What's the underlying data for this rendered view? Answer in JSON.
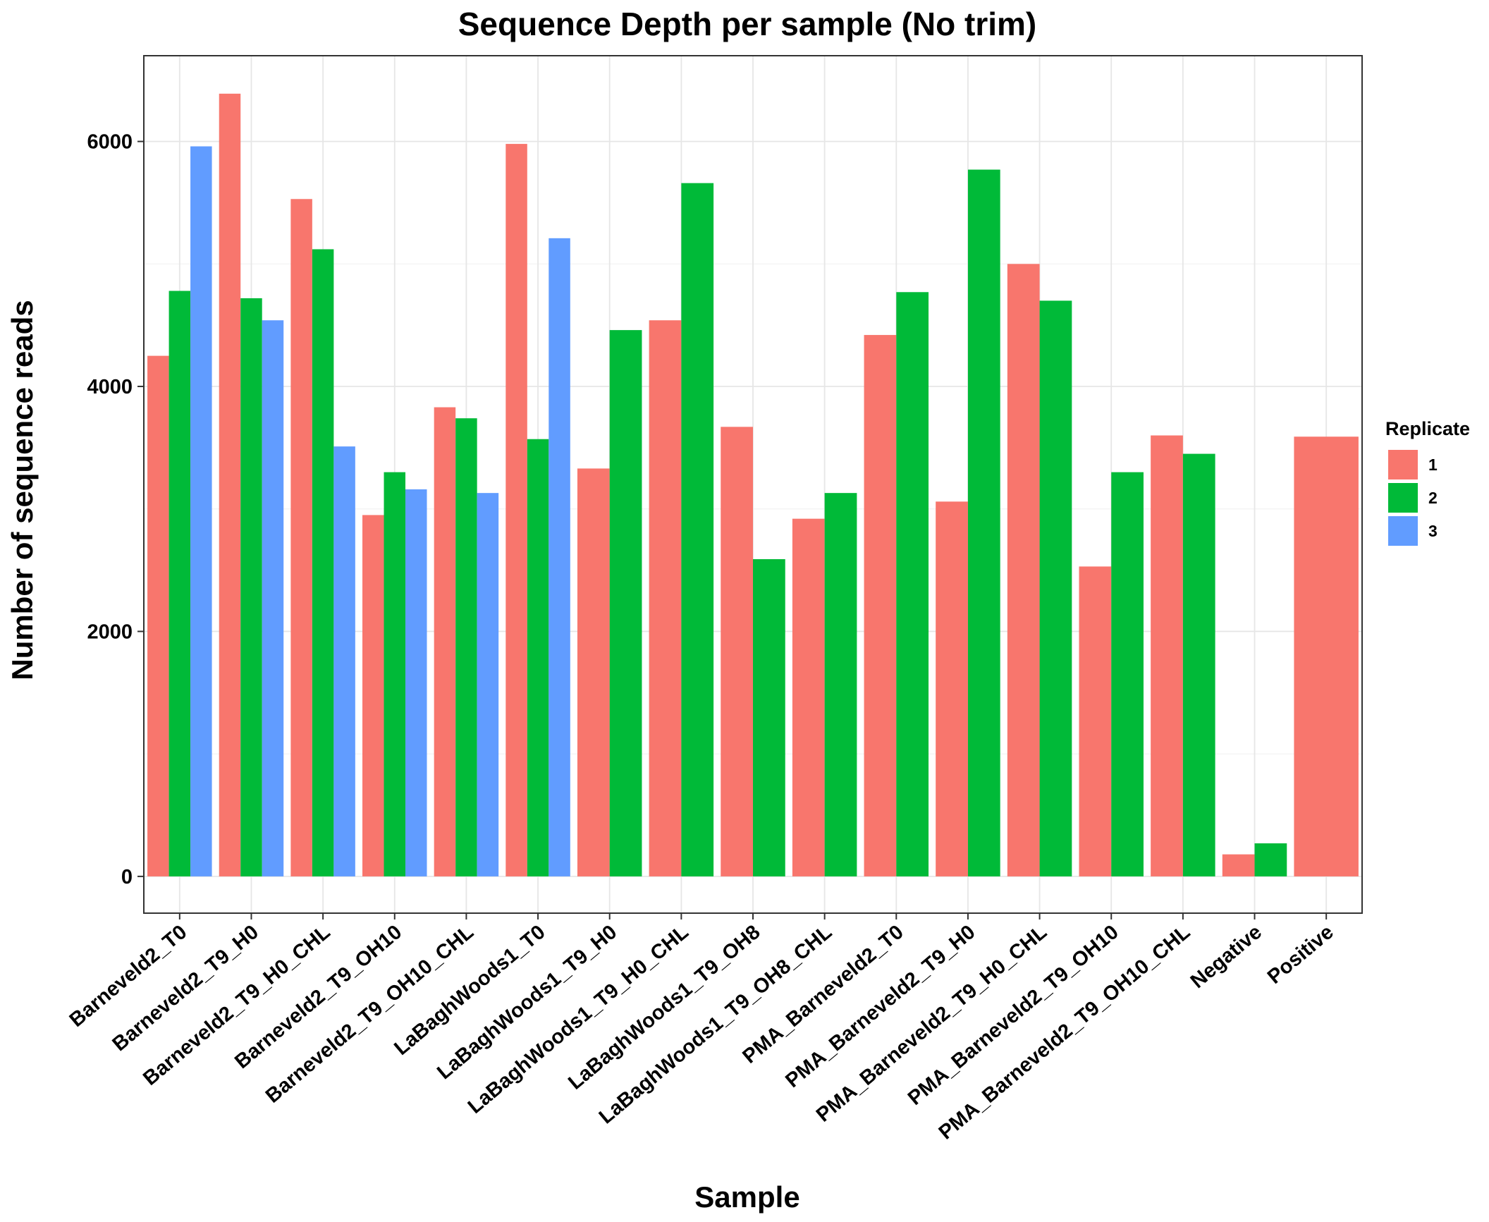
{
  "chart_data": {
    "type": "bar",
    "title": "Sequence Depth per sample (No trim)",
    "xlabel": "Sample",
    "ylabel": "Number of sequence reads",
    "ylim": [
      -300,
      6700
    ],
    "yticks": [
      0,
      2000,
      4000,
      6000
    ],
    "grid": true,
    "legend": {
      "title": "Replicate",
      "placement": "right",
      "entries": [
        {
          "label": "1",
          "color": "#F8766D"
        },
        {
          "label": "2",
          "color": "#00BA38"
        },
        {
          "label": "3",
          "color": "#619CFF"
        }
      ]
    },
    "categories": [
      "Barneveld2_T0",
      "Barneveld2_T9_H0",
      "Barneveld2_T9_H0_CHL",
      "Barneveld2_T9_OH10",
      "Barneveld2_T9_OH10_CHL",
      "LaBaghWoods1_T0",
      "LaBaghWoods1_T9_H0",
      "LaBaghWoods1_T9_H0_CHL",
      "LaBaghWoods1_T9_OH8",
      "LaBaghWoods1_T9_OH8_CHL",
      "PMA_Barneveld2_T0",
      "PMA_Barneveld2_T9_H0",
      "PMA_Barneveld2_T9_H0_CHL",
      "PMA_Barneveld2_T9_OH10",
      "PMA_Barneveld2_T9_OH10_CHL",
      "Negative",
      "Positive"
    ],
    "series": [
      {
        "name": "1",
        "color": "#F8766D",
        "values": [
          4250,
          6390,
          5530,
          2950,
          3830,
          5980,
          3330,
          4540,
          3670,
          2920,
          4420,
          3060,
          5000,
          2530,
          3600,
          180,
          3590
        ]
      },
      {
        "name": "2",
        "color": "#00BA38",
        "values": [
          4780,
          4720,
          5120,
          3300,
          3740,
          3570,
          4460,
          5660,
          2590,
          3130,
          4770,
          5770,
          4700,
          3300,
          3450,
          270,
          null
        ]
      },
      {
        "name": "3",
        "color": "#619CFF",
        "values": [
          5960,
          4540,
          3510,
          3160,
          3130,
          5210,
          null,
          null,
          null,
          null,
          null,
          null,
          null,
          null,
          null,
          null,
          null
        ]
      }
    ]
  }
}
